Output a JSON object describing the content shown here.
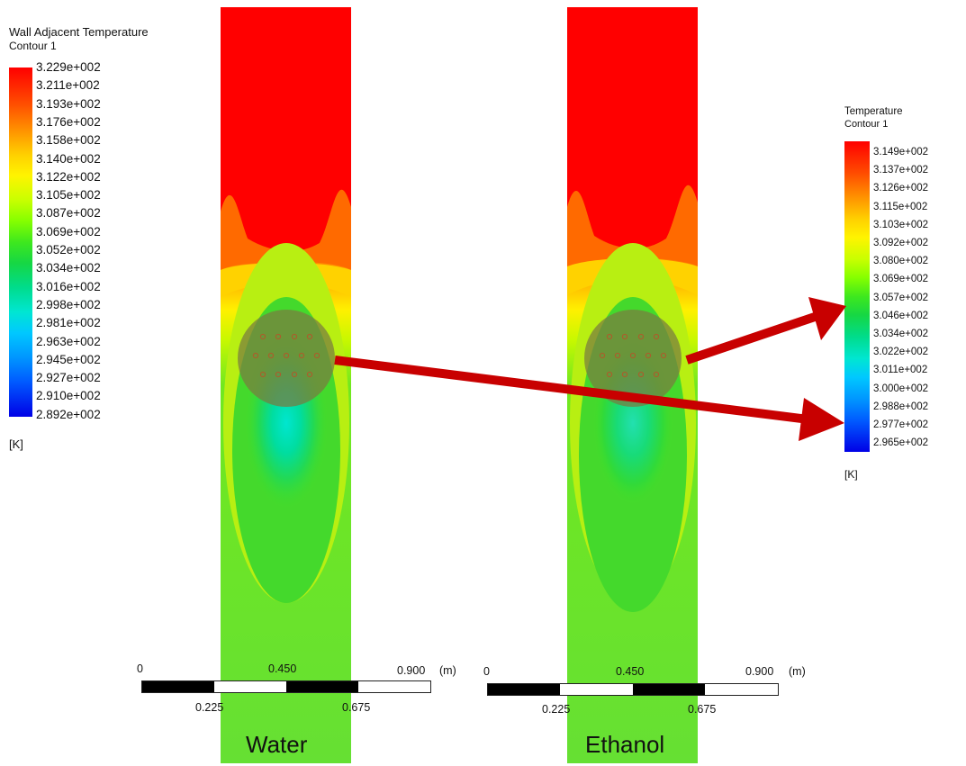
{
  "left_legend": {
    "title": "Wall Adjacent Temperature",
    "subtitle": "Contour 1",
    "ticks": [
      "3.229e+002",
      "3.211e+002",
      "3.193e+002",
      "3.176e+002",
      "3.158e+002",
      "3.140e+002",
      "3.122e+002",
      "3.105e+002",
      "3.087e+002",
      "3.069e+002",
      "3.052e+002",
      "3.034e+002",
      "3.016e+002",
      "2.998e+002",
      "2.981e+002",
      "2.963e+002",
      "2.945e+002",
      "2.927e+002",
      "2.910e+002",
      "2.892e+002"
    ],
    "unit": "[K]"
  },
  "right_legend": {
    "title": "Temperature",
    "subtitle": "Contour 1",
    "ticks": [
      "3.149e+002",
      "3.137e+002",
      "3.126e+002",
      "3.115e+002",
      "3.103e+002",
      "3.092e+002",
      "3.080e+002",
      "3.069e+002",
      "3.057e+002",
      "3.046e+002",
      "3.034e+002",
      "3.022e+002",
      "3.011e+002",
      "3.000e+002",
      "2.988e+002",
      "2.977e+002",
      "2.965e+002"
    ],
    "unit": "[K]"
  },
  "colormap": [
    "#ff0000",
    "#ff4400",
    "#ff8a00",
    "#ffc400",
    "#fff200",
    "#d8ff00",
    "#9cff00",
    "#5ef000",
    "#22dd22",
    "#00d966",
    "#00e0a8",
    "#00e6e6",
    "#00b4ff",
    "#0070ff",
    "#0030ff",
    "#0000e0"
  ],
  "scale_bars": [
    {
      "zero": "0",
      "mid": "0.450",
      "end": "0.900",
      "unit": "(m)",
      "q1": "0.225",
      "q3": "0.675"
    },
    {
      "zero": "0",
      "mid": "0.450",
      "end": "0.900",
      "unit": "(m)",
      "q1": "0.225",
      "q3": "0.675"
    }
  ],
  "panels": [
    {
      "caption": "Water"
    },
    {
      "caption": "Ethanol"
    }
  ]
}
